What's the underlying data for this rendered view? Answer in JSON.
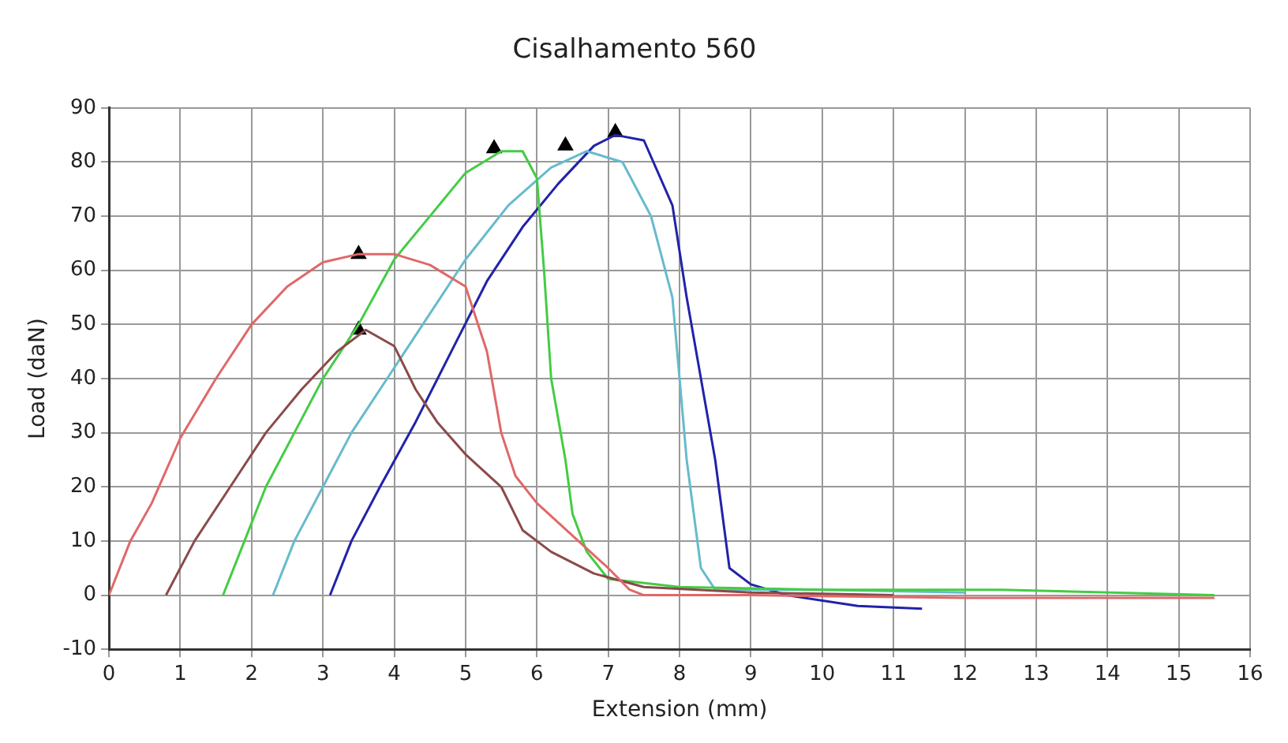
{
  "chart_data": {
    "type": "line",
    "title": "Cisalhamento 560",
    "xlabel": "Extension (mm)",
    "ylabel": "Load (daN)",
    "xlim": [
      0,
      16
    ],
    "xticks": [
      0,
      1,
      2,
      3,
      4,
      5,
      6,
      7,
      8,
      9,
      10,
      11,
      12,
      13,
      14,
      15,
      16
    ],
    "ylim": [
      -10,
      90
    ],
    "yticks": [
      -10,
      0,
      10,
      20,
      30,
      40,
      50,
      60,
      70,
      80,
      90
    ],
    "grid": true,
    "legend": false,
    "marker": "none",
    "line_style": "solid",
    "series": [
      {
        "color": "#e06868",
        "x": [
          0,
          0.3,
          0.6,
          1,
          1.5,
          2,
          2.5,
          3,
          3.5,
          4,
          4.5,
          5,
          5.3,
          5.5,
          5.7,
          6,
          6.5,
          7,
          7.3,
          7.5,
          9,
          12,
          15.5
        ],
        "values": [
          0,
          10,
          17,
          29,
          40,
          50,
          57,
          61.5,
          63,
          63,
          61,
          57,
          45,
          30,
          22,
          17,
          11,
          5,
          1,
          0,
          0,
          -0.5,
          -0.5
        ]
      },
      {
        "color": "#8b4a4a",
        "x": [
          0.8,
          1.2,
          1.7,
          2.2,
          2.7,
          3.2,
          3.6,
          4,
          4.3,
          4.6,
          5,
          5.5,
          5.8,
          6.2,
          6.8,
          7.5,
          9,
          11
        ],
        "values": [
          0,
          10,
          20,
          30,
          38,
          45,
          49,
          46,
          38,
          32,
          26,
          20,
          12,
          8,
          4,
          1.5,
          0.5,
          0
        ]
      },
      {
        "color": "#44cc44",
        "x": [
          1.6,
          1.9,
          2.2,
          2.6,
          3,
          3.5,
          4,
          4.5,
          5,
          5.5,
          5.8,
          6,
          6.1,
          6.2,
          6.4,
          6.5,
          6.7,
          7,
          8,
          10,
          12.5,
          15.5
        ],
        "values": [
          0,
          10,
          20,
          30,
          40,
          50,
          62,
          70,
          78,
          82,
          82,
          77,
          60,
          40,
          25,
          15,
          8,
          3,
          1.5,
          1,
          1,
          0
        ]
      },
      {
        "color": "#66bbcc",
        "x": [
          2.3,
          2.6,
          3,
          3.4,
          3.9,
          4.4,
          5,
          5.6,
          6.2,
          6.7,
          7.2,
          7.6,
          7.9,
          8,
          8.1,
          8.3,
          8.5,
          10,
          12
        ],
        "values": [
          0,
          10,
          20,
          30,
          40,
          50,
          62,
          72,
          79,
          82,
          80,
          70,
          55,
          40,
          25,
          5,
          1,
          1,
          0.5
        ]
      },
      {
        "color": "#2222aa",
        "x": [
          3.1,
          3.4,
          3.8,
          4.3,
          4.8,
          5.3,
          5.8,
          6.3,
          6.8,
          7.1,
          7.5,
          7.9,
          8.1,
          8.3,
          8.5,
          8.7,
          9,
          9.5,
          10.5,
          11.4
        ],
        "values": [
          0,
          10,
          20,
          32,
          45,
          58,
          68,
          76,
          83,
          85,
          84,
          72,
          55,
          40,
          25,
          5,
          2,
          0,
          -2,
          -2.5
        ]
      },
      {
        "type": "scatter",
        "marker": "triangle",
        "color": "#000000",
        "x": [
          3.5,
          3.5,
          5.4,
          6.4,
          7.1
        ],
        "values": [
          63,
          49,
          82.5,
          83,
          85.5
        ]
      }
    ]
  }
}
